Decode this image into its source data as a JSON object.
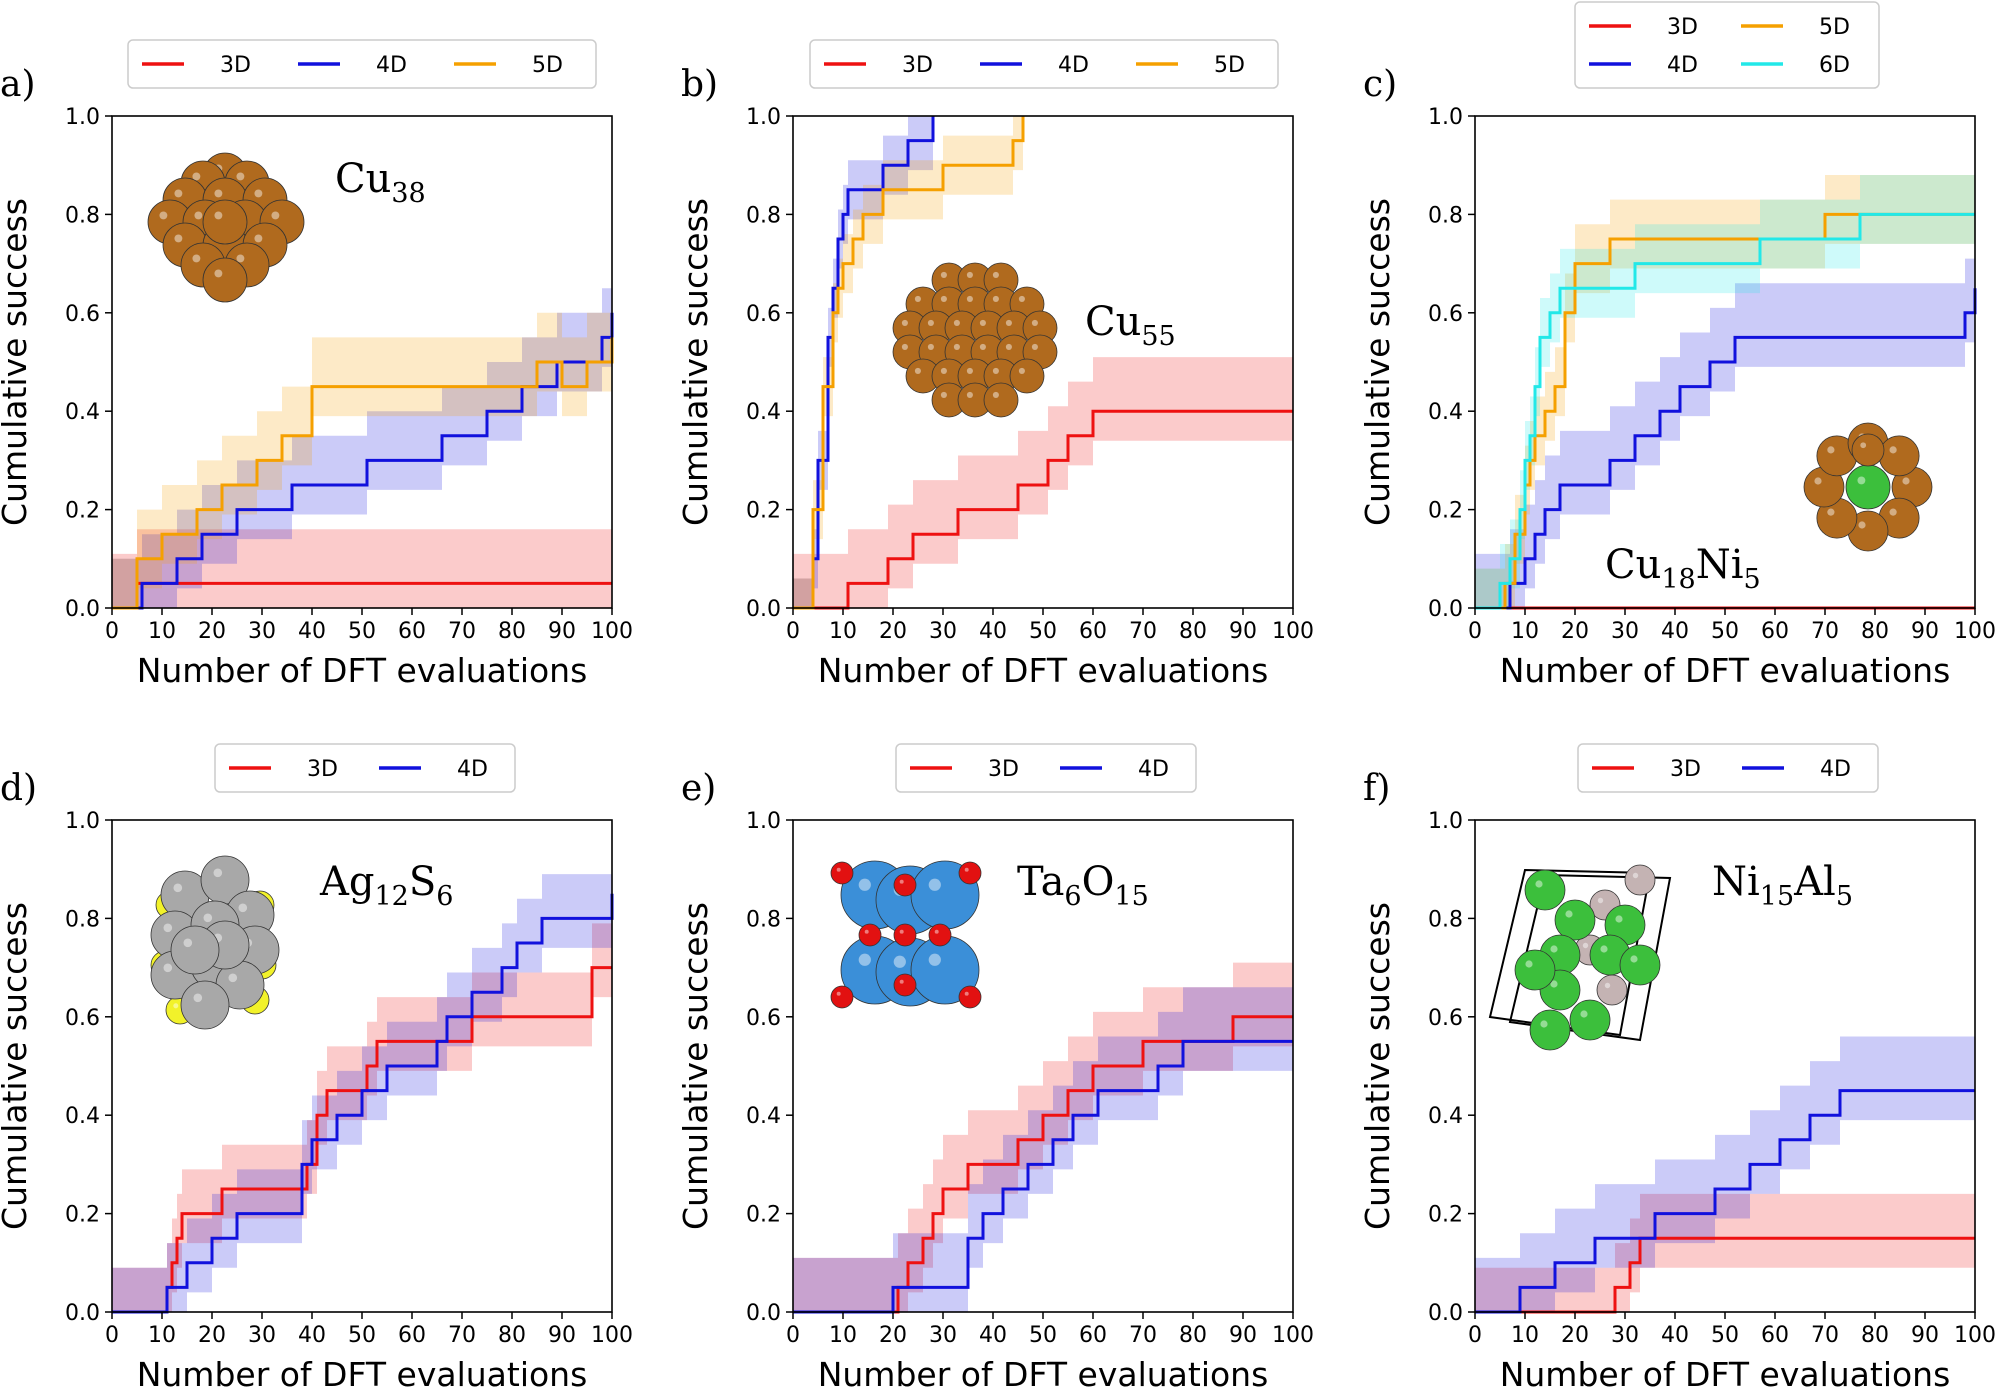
{
  "figure": {
    "xlabel": "Number of DFT evaluations",
    "ylabel": "Cumulative success",
    "xlim": [
      0,
      100
    ],
    "ylim": [
      0,
      1.0
    ],
    "xticks": [
      0,
      10,
      20,
      30,
      40,
      50,
      60,
      70,
      80,
      90,
      100
    ],
    "yticks": [
      0.0,
      0.2,
      0.4,
      0.6,
      0.8,
      1.0
    ],
    "colors": {
      "3D": "#ee1111",
      "4D": "#1111dd",
      "5D": "#f5a000",
      "6D": "#22e8e8"
    }
  },
  "chart_data": [
    {
      "type": "line",
      "panel": "a)",
      "structure": {
        "base": "Cu",
        "sub": "38",
        "base2": "",
        "sub2": ""
      },
      "legend": [
        "3D",
        "4D",
        "5D"
      ],
      "series": [
        {
          "name": "3D",
          "x": [
            0,
            5,
            100
          ],
          "y": [
            0.0,
            0.05,
            0.05
          ],
          "band": [
            0.0,
            0.11
          ]
        },
        {
          "name": "4D",
          "x": [
            0,
            6,
            13,
            18,
            25,
            36,
            51,
            66,
            75,
            82,
            89,
            98,
            100
          ],
          "y": [
            0.0,
            0.05,
            0.1,
            0.15,
            0.2,
            0.25,
            0.3,
            0.35,
            0.4,
            0.45,
            0.5,
            0.55,
            0.6
          ],
          "band": [
            0.0,
            0.1
          ]
        },
        {
          "name": "5D",
          "x": [
            0,
            5,
            10,
            17,
            22,
            29,
            34,
            40,
            60,
            80,
            85,
            90,
            95,
            100
          ],
          "y": [
            0.0,
            0.1,
            0.15,
            0.2,
            0.25,
            0.3,
            0.35,
            0.45,
            0.45,
            0.45,
            0.5,
            0.45,
            0.5,
            0.55
          ],
          "band": [
            0.0,
            0.1
          ]
        }
      ]
    },
    {
      "type": "line",
      "panel": "b)",
      "structure": {
        "base": "Cu",
        "sub": "55",
        "base2": "",
        "sub2": ""
      },
      "legend": [
        "3D",
        "4D",
        "5D"
      ],
      "series": [
        {
          "name": "3D",
          "x": [
            0,
            11,
            19,
            24,
            33,
            45,
            51,
            55,
            60,
            100
          ],
          "y": [
            0.0,
            0.05,
            0.1,
            0.15,
            0.2,
            0.25,
            0.3,
            0.35,
            0.4,
            0.4
          ],
          "band": [
            0.0,
            0.11
          ]
        },
        {
          "name": "4D",
          "x": [
            0,
            4,
            5,
            7,
            8,
            9,
            10,
            11,
            12,
            14,
            18,
            23,
            28
          ],
          "y": [
            0.0,
            0.1,
            0.3,
            0.55,
            0.65,
            0.75,
            0.8,
            0.85,
            0.85,
            0.85,
            0.9,
            0.95,
            1.0
          ],
          "band": [
            0.0,
            0.06
          ]
        },
        {
          "name": "5D",
          "x": [
            0,
            4,
            6,
            8,
            9,
            10,
            12,
            14,
            18,
            25,
            30,
            44,
            46
          ],
          "y": [
            0.0,
            0.2,
            0.45,
            0.6,
            0.65,
            0.7,
            0.75,
            0.8,
            0.85,
            0.85,
            0.9,
            0.95,
            1.0
          ],
          "band": [
            0.0,
            0.06
          ]
        }
      ]
    },
    {
      "type": "line",
      "panel": "c)",
      "structure": {
        "base": "Cu",
        "sub": "18",
        "base2": "Ni",
        "sub2": "5"
      },
      "legend": [
        "3D",
        "4D",
        "5D",
        "6D"
      ],
      "series": [
        {
          "name": "3D",
          "x": [
            0,
            100
          ],
          "y": [
            0.0,
            0.0
          ],
          "band": [
            0.0,
            0.0
          ]
        },
        {
          "name": "4D",
          "x": [
            0,
            7,
            10,
            12,
            14,
            17,
            20,
            27,
            32,
            37,
            41,
            44,
            47,
            52,
            56,
            60,
            90,
            98,
            100
          ],
          "y": [
            0.0,
            0.05,
            0.1,
            0.15,
            0.2,
            0.25,
            0.25,
            0.3,
            0.35,
            0.4,
            0.45,
            0.45,
            0.5,
            0.55,
            0.55,
            0.55,
            0.55,
            0.6,
            0.65
          ],
          "band": [
            0.0,
            0.11
          ]
        },
        {
          "name": "5D",
          "x": [
            0,
            6,
            8,
            10,
            11,
            12,
            14,
            16,
            18,
            20,
            27,
            32,
            55,
            70,
            100
          ],
          "y": [
            0.0,
            0.05,
            0.15,
            0.25,
            0.3,
            0.35,
            0.4,
            0.45,
            0.6,
            0.7,
            0.75,
            0.75,
            0.75,
            0.8,
            0.8
          ],
          "band": [
            0.0,
            0.08
          ]
        },
        {
          "name": "6D",
          "x": [
            0,
            5,
            7,
            9,
            10,
            11,
            12,
            13,
            15,
            17,
            20,
            32,
            57,
            77,
            100
          ],
          "y": [
            0.0,
            0.05,
            0.1,
            0.2,
            0.3,
            0.35,
            0.45,
            0.55,
            0.6,
            0.65,
            0.65,
            0.7,
            0.75,
            0.8,
            0.8
          ],
          "band": [
            0.0,
            0.08
          ]
        }
      ]
    },
    {
      "type": "line",
      "panel": "d)",
      "structure": {
        "base": "Ag",
        "sub": "12",
        "base2": "S",
        "sub2": "6"
      },
      "legend": [
        "3D",
        "4D"
      ],
      "series": [
        {
          "name": "3D",
          "x": [
            0,
            11,
            12,
            13,
            14,
            18,
            22,
            30,
            39,
            41,
            43,
            51,
            53,
            61,
            67,
            72,
            76,
            95,
            96,
            100
          ],
          "y": [
            0.0,
            0.05,
            0.1,
            0.15,
            0.2,
            0.2,
            0.25,
            0.25,
            0.3,
            0.4,
            0.45,
            0.5,
            0.55,
            0.55,
            0.55,
            0.6,
            0.6,
            0.6,
            0.7,
            0.7
          ],
          "band": [
            0.0,
            0.09
          ]
        },
        {
          "name": "4D",
          "x": [
            0,
            11,
            12,
            15,
            20,
            25,
            29,
            35,
            38,
            40,
            45,
            50,
            55,
            65,
            67,
            72,
            78,
            81,
            86,
            96,
            99,
            100
          ],
          "y": [
            0.0,
            0.05,
            0.05,
            0.1,
            0.15,
            0.2,
            0.2,
            0.2,
            0.3,
            0.35,
            0.4,
            0.45,
            0.5,
            0.55,
            0.6,
            0.65,
            0.7,
            0.75,
            0.8,
            0.8,
            0.8,
            0.85
          ],
          "band": [
            0.0,
            0.09
          ]
        }
      ]
    },
    {
      "type": "line",
      "panel": "e)",
      "structure": {
        "base": "Ta",
        "sub": "6",
        "base2": "O",
        "sub2": "15"
      },
      "legend": [
        "3D",
        "4D"
      ],
      "series": [
        {
          "name": "3D",
          "x": [
            0,
            21,
            23,
            26,
            28,
            30,
            35,
            40,
            45,
            50,
            55,
            60,
            70,
            75,
            88,
            100
          ],
          "y": [
            0.0,
            0.05,
            0.1,
            0.15,
            0.2,
            0.25,
            0.3,
            0.3,
            0.35,
            0.4,
            0.45,
            0.5,
            0.55,
            0.55,
            0.6,
            0.6
          ],
          "band": [
            0.0,
            0.11
          ]
        },
        {
          "name": "4D",
          "x": [
            0,
            20,
            30,
            35,
            38,
            42,
            47,
            52,
            56,
            61,
            68,
            73,
            78,
            100
          ],
          "y": [
            0.0,
            0.05,
            0.05,
            0.15,
            0.2,
            0.25,
            0.3,
            0.35,
            0.4,
            0.45,
            0.45,
            0.5,
            0.55,
            0.55
          ],
          "band": [
            0.0,
            0.11
          ]
        }
      ]
    },
    {
      "type": "line",
      "panel": "f)",
      "structure": {
        "base": "Ni",
        "sub": "15",
        "base2": "Al",
        "sub2": "5"
      },
      "legend": [
        "3D",
        "4D"
      ],
      "series": [
        {
          "name": "3D",
          "x": [
            0,
            25,
            28,
            31,
            33,
            35,
            40,
            100
          ],
          "y": [
            0.0,
            0.0,
            0.05,
            0.1,
            0.15,
            0.15,
            0.15,
            0.15
          ],
          "band": [
            0.0,
            0.09
          ]
        },
        {
          "name": "4D",
          "x": [
            0,
            9,
            16,
            24,
            29,
            36,
            41,
            48,
            55,
            61,
            67,
            73,
            100
          ],
          "y": [
            0.0,
            0.05,
            0.1,
            0.15,
            0.15,
            0.2,
            0.2,
            0.25,
            0.3,
            0.35,
            0.4,
            0.45,
            0.45
          ],
          "band": [
            0.0,
            0.11
          ]
        }
      ]
    }
  ]
}
